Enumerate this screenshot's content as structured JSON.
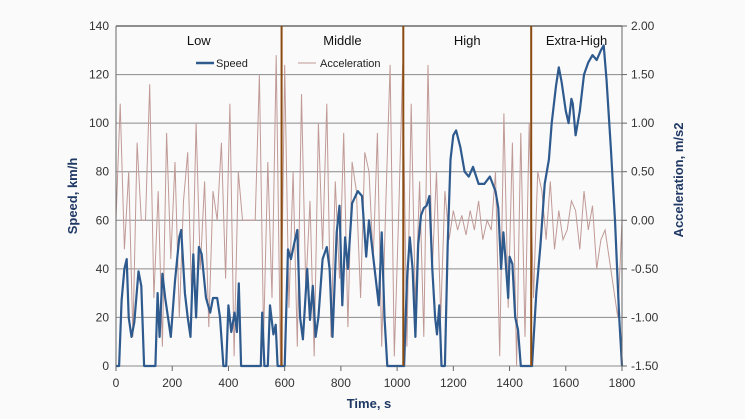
{
  "chart_data": {
    "type": "line",
    "xlabel": "Time, s",
    "ylabel": "Speed, km/h",
    "y2label": "Acceleration, m/s2",
    "xlim": [
      0,
      1800
    ],
    "ylim": [
      0,
      140
    ],
    "y2lim": [
      -1.5,
      2.0
    ],
    "x_ticks": [
      "0",
      "200",
      "400",
      "600",
      "800",
      "1000",
      "1200",
      "1400",
      "1600",
      "1800"
    ],
    "y_ticks": [
      "0",
      "20",
      "40",
      "60",
      "80",
      "100",
      "120",
      "140"
    ],
    "y2_ticks": [
      "-1.50",
      "-1.00",
      "-0.50",
      "0.00",
      "0.50",
      "1.00",
      "1.50",
      "2.00"
    ],
    "grid": true,
    "legend_position": "top-left",
    "legend": [
      "Speed",
      "Acceleration"
    ],
    "colors": {
      "speed": "#2e5a8e",
      "acceleration": "#c09a96",
      "phase_line": "#8b4a10"
    },
    "phases": [
      {
        "name": "Low",
        "start": 0,
        "end": 589
      },
      {
        "name": "Middle",
        "start": 589,
        "end": 1022
      },
      {
        "name": "High",
        "start": 1022,
        "end": 1477
      },
      {
        "name": "Extra-High",
        "start": 1477,
        "end": 1800
      }
    ],
    "series": [
      {
        "name": "Speed",
        "axis": "left",
        "points": [
          [
            0,
            0
          ],
          [
            11,
            0
          ],
          [
            20,
            27
          ],
          [
            30,
            40
          ],
          [
            38,
            44
          ],
          [
            45,
            20
          ],
          [
            55,
            12
          ],
          [
            65,
            18
          ],
          [
            80,
            39
          ],
          [
            90,
            33
          ],
          [
            100,
            0
          ],
          [
            140,
            0
          ],
          [
            148,
            30
          ],
          [
            155,
            12
          ],
          [
            165,
            38
          ],
          [
            175,
            28
          ],
          [
            185,
            20
          ],
          [
            195,
            12
          ],
          [
            210,
            35
          ],
          [
            225,
            53
          ],
          [
            232,
            56
          ],
          [
            245,
            30
          ],
          [
            255,
            20
          ],
          [
            265,
            12
          ],
          [
            275,
            46
          ],
          [
            285,
            20
          ],
          [
            295,
            49
          ],
          [
            305,
            46
          ],
          [
            320,
            28
          ],
          [
            335,
            22
          ],
          [
            345,
            28
          ],
          [
            360,
            28
          ],
          [
            370,
            20
          ],
          [
            382,
            0
          ],
          [
            392,
            0
          ],
          [
            400,
            25
          ],
          [
            410,
            14
          ],
          [
            422,
            22
          ],
          [
            430,
            14
          ],
          [
            437,
            34
          ],
          [
            445,
            0
          ],
          [
            515,
            0
          ],
          [
            520,
            22
          ],
          [
            528,
            0
          ],
          [
            540,
            0
          ],
          [
            548,
            25
          ],
          [
            560,
            13
          ],
          [
            568,
            17
          ],
          [
            575,
            0
          ],
          [
            600,
            0
          ],
          [
            612,
            48
          ],
          [
            622,
            44
          ],
          [
            635,
            51
          ],
          [
            645,
            56
          ],
          [
            655,
            20
          ],
          [
            665,
            11
          ],
          [
            680,
            40
          ],
          [
            690,
            19
          ],
          [
            700,
            33
          ],
          [
            710,
            12
          ],
          [
            720,
            20
          ],
          [
            735,
            44
          ],
          [
            750,
            49
          ],
          [
            760,
            40
          ],
          [
            770,
            12
          ],
          [
            785,
            55
          ],
          [
            795,
            66
          ],
          [
            805,
            25
          ],
          [
            815,
            53
          ],
          [
            825,
            40
          ],
          [
            840,
            67
          ],
          [
            860,
            72
          ],
          [
            875,
            70
          ],
          [
            890,
            45
          ],
          [
            900,
            60
          ],
          [
            920,
            40
          ],
          [
            935,
            25
          ],
          [
            945,
            55
          ],
          [
            955,
            20
          ],
          [
            965,
            0
          ],
          [
            1025,
            0
          ],
          [
            1035,
            35
          ],
          [
            1045,
            53
          ],
          [
            1055,
            40
          ],
          [
            1065,
            12
          ],
          [
            1075,
            50
          ],
          [
            1085,
            62
          ],
          [
            1095,
            65
          ],
          [
            1105,
            66
          ],
          [
            1115,
            70
          ],
          [
            1125,
            40
          ],
          [
            1135,
            20
          ],
          [
            1142,
            13
          ],
          [
            1150,
            25
          ],
          [
            1158,
            0
          ],
          [
            1170,
            0
          ],
          [
            1180,
            50
          ],
          [
            1190,
            85
          ],
          [
            1200,
            95
          ],
          [
            1210,
            97
          ],
          [
            1225,
            90
          ],
          [
            1240,
            80
          ],
          [
            1255,
            78
          ],
          [
            1270,
            82
          ],
          [
            1290,
            75
          ],
          [
            1310,
            75
          ],
          [
            1330,
            78
          ],
          [
            1350,
            72
          ],
          [
            1360,
            65
          ],
          [
            1370,
            40
          ],
          [
            1378,
            55
          ],
          [
            1385,
            45
          ],
          [
            1395,
            28
          ],
          [
            1400,
            45
          ],
          [
            1410,
            42
          ],
          [
            1420,
            20
          ],
          [
            1430,
            15
          ],
          [
            1440,
            0
          ],
          [
            1480,
            0
          ],
          [
            1495,
            30
          ],
          [
            1510,
            50
          ],
          [
            1525,
            75
          ],
          [
            1540,
            85
          ],
          [
            1550,
            100
          ],
          [
            1565,
            115
          ],
          [
            1575,
            123
          ],
          [
            1585,
            117
          ],
          [
            1600,
            105
          ],
          [
            1610,
            100
          ],
          [
            1620,
            110
          ],
          [
            1625,
            108
          ],
          [
            1635,
            95
          ],
          [
            1650,
            105
          ],
          [
            1665,
            120
          ],
          [
            1680,
            125
          ],
          [
            1695,
            128
          ],
          [
            1710,
            126
          ],
          [
            1725,
            130
          ],
          [
            1735,
            132
          ],
          [
            1745,
            118
          ],
          [
            1760,
            90
          ],
          [
            1775,
            60
          ],
          [
            1790,
            20
          ],
          [
            1800,
            0
          ]
        ]
      },
      {
        "name": "Acceleration",
        "axis": "right",
        "t0": 0,
        "dt": 15,
        "values": [
          0,
          1.2,
          -0.3,
          0.5,
          -1.2,
          0.8,
          0,
          0,
          1.4,
          -0.8,
          0.3,
          -1.3,
          0.9,
          -0.4,
          0.6,
          -1.0,
          0.2,
          0.7,
          -0.9,
          1.0,
          -0.5,
          0.4,
          -1.1,
          0.3,
          0,
          0.8,
          -0.6,
          1.2,
          -1.4,
          0.5,
          0,
          0,
          0,
          0,
          1.5,
          -1.2,
          0.6,
          -0.8,
          1.7,
          -1.5,
          1.6,
          -0.9,
          0.5,
          -1.3,
          1.3,
          -0.7,
          0.2,
          -1.4,
          1.0,
          -0.3,
          1.2,
          -1.2,
          0.4,
          -0.6,
          0.9,
          -1.1,
          0.6,
          0.3,
          -0.8,
          0.7,
          0.5,
          -0.4,
          0.9,
          -1.3,
          0.2,
          1.6,
          -1.4,
          0,
          1.6,
          -1.3,
          1.2,
          -0.9,
          0.4,
          -1.2,
          1.6,
          -0.5,
          0.5,
          -1.0,
          0.3,
          -0.2,
          0.1,
          -0.1,
          0.05,
          -0.15,
          0.1,
          -0.1,
          0.2,
          -0.2,
          0,
          -0.1,
          0.5,
          -1.4,
          1.1,
          -0.9,
          0.8,
          -1.5,
          0.9,
          -1.2,
          1.0,
          -0.8,
          0.5,
          0.3,
          -0.2,
          0.4,
          -0.3,
          0.1,
          -0.2,
          -0.1,
          0.2,
          0.1,
          -0.3,
          0.3,
          -0.1,
          0.15,
          -0.5,
          -0.2,
          -0.1,
          -0.4,
          -0.7,
          -1.0,
          0
        ]
      }
    ]
  }
}
